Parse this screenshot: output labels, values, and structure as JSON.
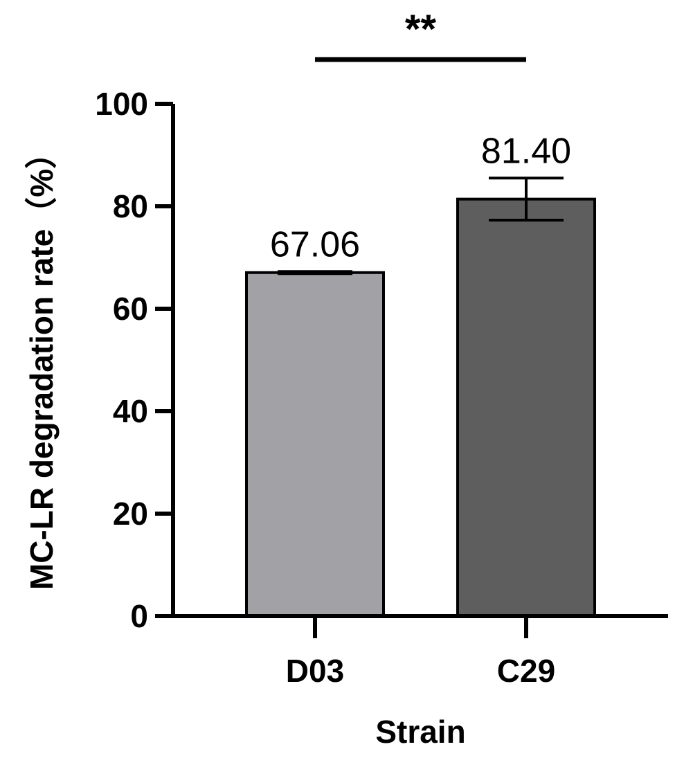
{
  "chart_data": {
    "type": "bar",
    "categories": [
      "D03",
      "C29"
    ],
    "values": [
      67.06,
      81.4
    ],
    "error": [
      0.2,
      4.1
    ],
    "data_labels": [
      "67.06",
      "81.40"
    ],
    "colors": [
      "#a2a1a6",
      "#5e5e5e"
    ],
    "xlabel": "Strain",
    "ylabel": "MC-LR degradation rate（%）",
    "ylim": [
      0,
      100
    ],
    "yticks": [
      0,
      20,
      40,
      60,
      80,
      100
    ],
    "significance": {
      "between": [
        "D03",
        "C29"
      ],
      "label": "**"
    },
    "grid": false,
    "legend": "none"
  }
}
